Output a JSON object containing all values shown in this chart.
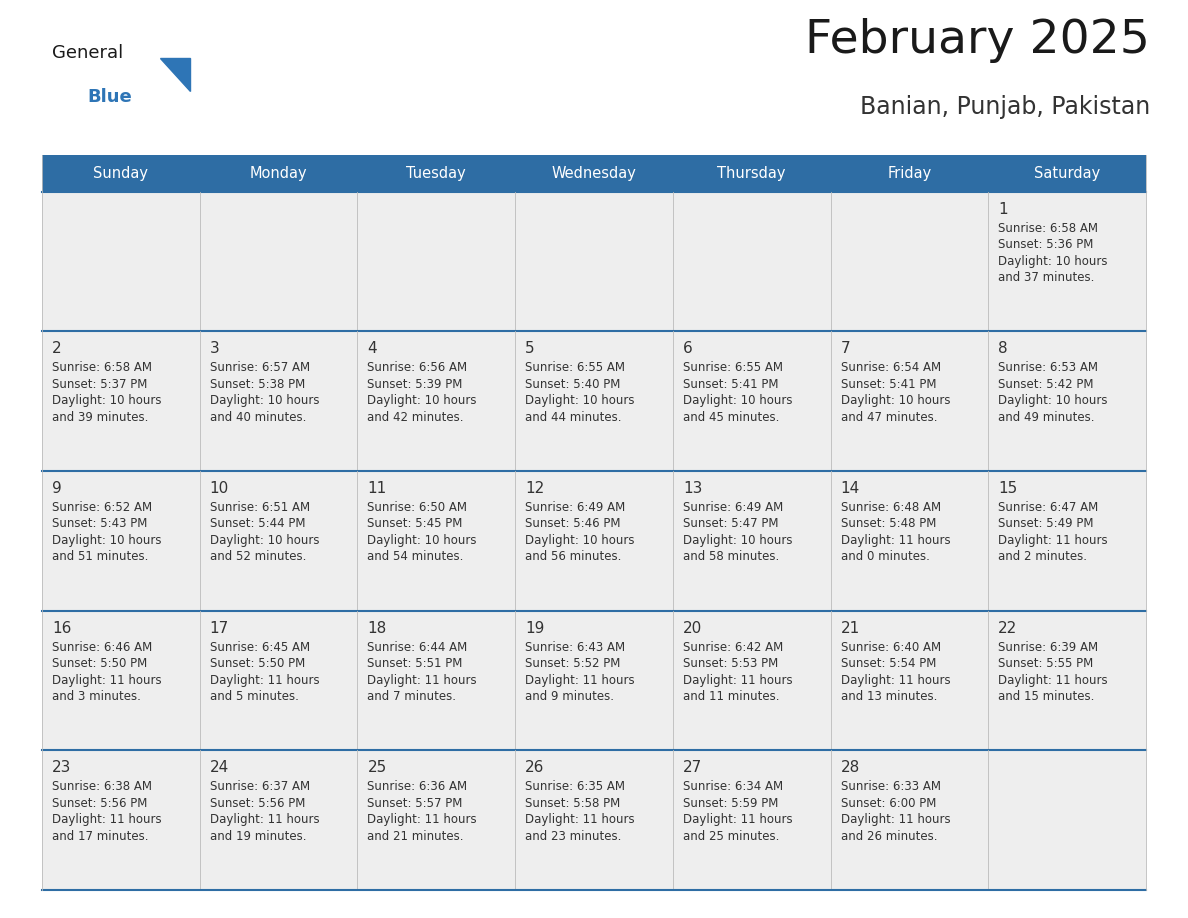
{
  "title": "February 2025",
  "subtitle": "Banian, Punjab, Pakistan",
  "header_bg": "#2E6DA4",
  "header_text": "#FFFFFF",
  "day_names": [
    "Sunday",
    "Monday",
    "Tuesday",
    "Wednesday",
    "Thursday",
    "Friday",
    "Saturday"
  ],
  "row_bg": "#EEEEEE",
  "row_border_color": "#2E6DA4",
  "cell_border_color": "#BBBBBB",
  "title_color": "#1a1a1a",
  "subtitle_color": "#333333",
  "day_num_color": "#333333",
  "cell_text_color": "#333333",
  "logo_general_color": "#1a1a1a",
  "logo_blue_color": "#2E75B6",
  "calendar_data": [
    [
      null,
      null,
      null,
      null,
      null,
      null,
      {
        "day": 1,
        "sunrise": "6:58 AM",
        "sunset": "5:36 PM",
        "daylight": "10 hours and 37 minutes."
      }
    ],
    [
      {
        "day": 2,
        "sunrise": "6:58 AM",
        "sunset": "5:37 PM",
        "daylight": "10 hours and 39 minutes."
      },
      {
        "day": 3,
        "sunrise": "6:57 AM",
        "sunset": "5:38 PM",
        "daylight": "10 hours and 40 minutes."
      },
      {
        "day": 4,
        "sunrise": "6:56 AM",
        "sunset": "5:39 PM",
        "daylight": "10 hours and 42 minutes."
      },
      {
        "day": 5,
        "sunrise": "6:55 AM",
        "sunset": "5:40 PM",
        "daylight": "10 hours and 44 minutes."
      },
      {
        "day": 6,
        "sunrise": "6:55 AM",
        "sunset": "5:41 PM",
        "daylight": "10 hours and 45 minutes."
      },
      {
        "day": 7,
        "sunrise": "6:54 AM",
        "sunset": "5:41 PM",
        "daylight": "10 hours and 47 minutes."
      },
      {
        "day": 8,
        "sunrise": "6:53 AM",
        "sunset": "5:42 PM",
        "daylight": "10 hours and 49 minutes."
      }
    ],
    [
      {
        "day": 9,
        "sunrise": "6:52 AM",
        "sunset": "5:43 PM",
        "daylight": "10 hours and 51 minutes."
      },
      {
        "day": 10,
        "sunrise": "6:51 AM",
        "sunset": "5:44 PM",
        "daylight": "10 hours and 52 minutes."
      },
      {
        "day": 11,
        "sunrise": "6:50 AM",
        "sunset": "5:45 PM",
        "daylight": "10 hours and 54 minutes."
      },
      {
        "day": 12,
        "sunrise": "6:49 AM",
        "sunset": "5:46 PM",
        "daylight": "10 hours and 56 minutes."
      },
      {
        "day": 13,
        "sunrise": "6:49 AM",
        "sunset": "5:47 PM",
        "daylight": "10 hours and 58 minutes."
      },
      {
        "day": 14,
        "sunrise": "6:48 AM",
        "sunset": "5:48 PM",
        "daylight": "11 hours and 0 minutes."
      },
      {
        "day": 15,
        "sunrise": "6:47 AM",
        "sunset": "5:49 PM",
        "daylight": "11 hours and 2 minutes."
      }
    ],
    [
      {
        "day": 16,
        "sunrise": "6:46 AM",
        "sunset": "5:50 PM",
        "daylight": "11 hours and 3 minutes."
      },
      {
        "day": 17,
        "sunrise": "6:45 AM",
        "sunset": "5:50 PM",
        "daylight": "11 hours and 5 minutes."
      },
      {
        "day": 18,
        "sunrise": "6:44 AM",
        "sunset": "5:51 PM",
        "daylight": "11 hours and 7 minutes."
      },
      {
        "day": 19,
        "sunrise": "6:43 AM",
        "sunset": "5:52 PM",
        "daylight": "11 hours and 9 minutes."
      },
      {
        "day": 20,
        "sunrise": "6:42 AM",
        "sunset": "5:53 PM",
        "daylight": "11 hours and 11 minutes."
      },
      {
        "day": 21,
        "sunrise": "6:40 AM",
        "sunset": "5:54 PM",
        "daylight": "11 hours and 13 minutes."
      },
      {
        "day": 22,
        "sunrise": "6:39 AM",
        "sunset": "5:55 PM",
        "daylight": "11 hours and 15 minutes."
      }
    ],
    [
      {
        "day": 23,
        "sunrise": "6:38 AM",
        "sunset": "5:56 PM",
        "daylight": "11 hours and 17 minutes."
      },
      {
        "day": 24,
        "sunrise": "6:37 AM",
        "sunset": "5:56 PM",
        "daylight": "11 hours and 19 minutes."
      },
      {
        "day": 25,
        "sunrise": "6:36 AM",
        "sunset": "5:57 PM",
        "daylight": "11 hours and 21 minutes."
      },
      {
        "day": 26,
        "sunrise": "6:35 AM",
        "sunset": "5:58 PM",
        "daylight": "11 hours and 23 minutes."
      },
      {
        "day": 27,
        "sunrise": "6:34 AM",
        "sunset": "5:59 PM",
        "daylight": "11 hours and 25 minutes."
      },
      {
        "day": 28,
        "sunrise": "6:33 AM",
        "sunset": "6:00 PM",
        "daylight": "11 hours and 26 minutes."
      },
      null
    ]
  ]
}
